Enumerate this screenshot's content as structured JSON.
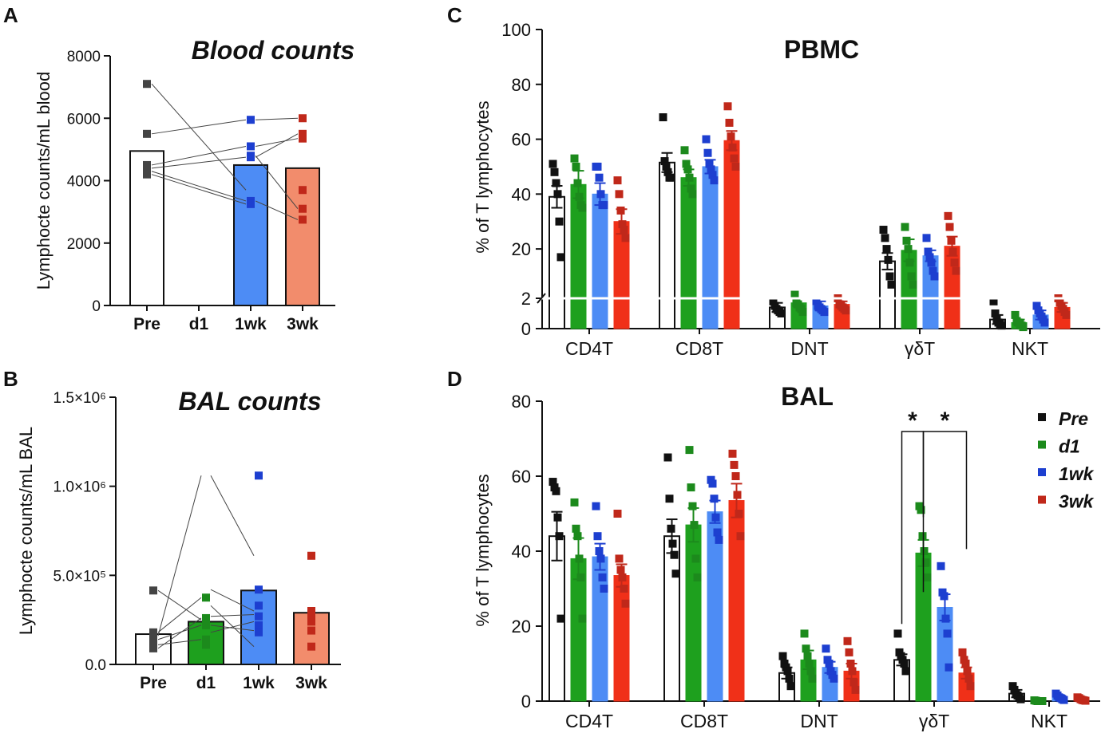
{
  "colors": {
    "Pre": "#ffffff",
    "d1": "#1ea01e",
    "1wk": "#4d8cf5",
    "3wk": "#f28c6c",
    "3wk_pct": "#f03018",
    "dot_Pre": "#111111",
    "dot_d1": "#1c8a1c",
    "dot_1wk": "#1d3fd0",
    "dot_3wk": "#c0281a"
  },
  "legend": {
    "items": [
      "Pre",
      "d1",
      "1wk",
      "3wk"
    ]
  },
  "chart_data": [
    {
      "id": "A",
      "panel_letter": "A",
      "type": "bar",
      "title": "Blood counts",
      "ylabel": "Lymphocte counts/mL blood",
      "ylim": [
        0,
        8000
      ],
      "yticks": [
        "0",
        "2000",
        "4000",
        "6000",
        "8000"
      ],
      "categories": [
        "Pre",
        "d1",
        "1wk",
        "3wk"
      ],
      "values": [
        4950,
        null,
        4500,
        4400
      ],
      "points": {
        "Pre": [
          7100,
          5500,
          4500,
          4400,
          4300,
          4200
        ],
        "1wk": [
          5950,
          5100,
          4800,
          4750,
          3350,
          3250
        ],
        "3wk": [
          6000,
          5500,
          5350,
          3700,
          3100,
          2750
        ]
      },
      "pairs": [
        [
          7100,
          3700
        ],
        [
          5500,
          5950
        ],
        [
          4500,
          5100
        ],
        [
          4400,
          4750
        ],
        [
          4300,
          3350
        ],
        [
          4200,
          3250
        ],
        [
          4750,
          5500
        ],
        [
          5100,
          5350
        ],
        [
          5950,
          6000
        ],
        [
          4800,
          3100
        ],
        [
          3350,
          2750
        ]
      ]
    },
    {
      "id": "B",
      "panel_letter": "B",
      "type": "bar",
      "title": "BAL counts",
      "ylabel": "Lymphocte counts/mL BAL",
      "ylim": [
        0,
        1500000
      ],
      "yticks": [
        "0.0",
        "5.0×10⁵",
        "1.0×10⁶",
        "1.5×10⁶"
      ],
      "categories": [
        "Pre",
        "d1",
        "1wk",
        "3wk"
      ],
      "values": [
        170000,
        240000,
        415000,
        290000
      ],
      "points": {
        "Pre": [
          415000,
          180000,
          160000,
          140000,
          110000,
          90000
        ],
        "d1": [
          375000,
          260000,
          250000,
          220000,
          140000,
          110000
        ],
        "1wk": [
          1060000,
          420000,
          330000,
          270000,
          220000,
          180000
        ],
        "3wk": [
          610000,
          300000,
          280000,
          240000,
          190000,
          100000
        ]
      },
      "pairs": [
        [
          415000,
          250000
        ],
        [
          180000,
          375000
        ],
        [
          160000,
          1060000
        ],
        [
          140000,
          220000
        ],
        [
          110000,
          140000
        ],
        [
          90000,
          260000
        ],
        [
          1060000,
          610000
        ],
        [
          420000,
          300000
        ],
        [
          330000,
          100000
        ],
        [
          270000,
          280000
        ],
        [
          220000,
          190000
        ],
        [
          180000,
          240000
        ]
      ]
    },
    {
      "id": "C",
      "panel_letter": "C",
      "type": "bar",
      "title": "PBMC",
      "ylabel": "% of T lymphocytes",
      "ylim": [
        0,
        100
      ],
      "axis_break": 2,
      "yticks": [
        "0",
        "2",
        "20",
        "40",
        "60",
        "80",
        "100"
      ],
      "categories": [
        "CD4T",
        "CD8T",
        "DNT",
        "γδT",
        "NKT"
      ],
      "series": [
        {
          "name": "Pre",
          "values": [
            39,
            51.5,
            1.4,
            15.5,
            0.6
          ],
          "sem": [
            4,
            3.5,
            0.3,
            3,
            0.3
          ],
          "points": [
            [
              51,
              48,
              44,
              40,
              30,
              17
            ],
            [
              68,
              52,
              50,
              48,
              46,
              46
            ],
            [
              1.8,
              1.5,
              1.3,
              1.2,
              1.1,
              1.0
            ],
            [
              27,
              24,
              20,
              16,
              10,
              7
            ],
            [
              1.8,
              1.0,
              0.6,
              0.4,
              0.3,
              0.2
            ]
          ]
        },
        {
          "name": "d1",
          "values": [
            43.5,
            46,
            1.7,
            19.5,
            0.4
          ],
          "sem": [
            5,
            3,
            0.3,
            4,
            0.2
          ],
          "points": [
            [
              53,
              50,
              44,
              39,
              36,
              35
            ],
            [
              56,
              51,
              49,
              46,
              42,
              40
            ],
            [
              3.3,
              1.7,
              1.6,
              1.4,
              1.3,
              1.1
            ],
            [
              28,
              23,
              20,
              15,
              10,
              7
            ],
            [
              0.9,
              0.5,
              0.4,
              0.3,
              0.2,
              0.1
            ]
          ]
        },
        {
          "name": "1wk",
          "values": [
            40,
            50,
            1.5,
            17.5,
            0.9
          ],
          "sem": [
            4,
            2.5,
            0.3,
            2,
            0.3
          ],
          "points": [
            [
              50,
              50,
              46,
              40,
              36,
              36
            ],
            [
              60,
              55,
              51,
              49,
              47,
              45
            ],
            [
              1.8,
              1.5,
              1.4,
              1.3,
              1.2,
              1.1
            ],
            [
              24,
              19,
              17,
              15,
              12,
              10
            ],
            [
              1.5,
              1.2,
              1.0,
              0.8,
              0.6,
              0.4
            ]
          ]
        },
        {
          "name": "3wk",
          "values": [
            30,
            59.5,
            1.6,
            21,
            1.4
          ],
          "sem": [
            4.5,
            3.5,
            0.2,
            3.5,
            0.3
          ],
          "points": [
            [
              45,
              40,
              34,
              29,
              27,
              24
            ],
            [
              72,
              66,
              61,
              57,
              53,
              50
            ],
            [
              2.0,
              1.6,
              1.5,
              1.4,
              1.3,
              1.2
            ],
            [
              32,
              28,
              23,
              19,
              15,
              12
            ],
            [
              2.0,
              1.7,
              1.5,
              1.3,
              1.1,
              0.9
            ]
          ]
        }
      ]
    },
    {
      "id": "D",
      "panel_letter": "D",
      "type": "bar",
      "title": "BAL",
      "ylabel": "% of T lymphocytes",
      "ylim": [
        0,
        80
      ],
      "yticks": [
        "0",
        "20",
        "40",
        "60",
        "80"
      ],
      "categories": [
        "CD4T",
        "CD8T",
        "DNT",
        "γδT",
        "NKT"
      ],
      "significance": [
        {
          "from": "γδT:Pre",
          "to": "γδT:d1",
          "label": "*"
        },
        {
          "from": "γδT:d1",
          "to": "γδT:3wk",
          "label": "*"
        }
      ],
      "series": [
        {
          "name": "Pre",
          "values": [
            44,
            44,
            7.5,
            11,
            2
          ],
          "sem": [
            6.5,
            4.5,
            1.5,
            1.5,
            1
          ],
          "points": [
            [
              58.5,
              57,
              56,
              49,
              44,
              22
            ],
            [
              65,
              54,
              46,
              42,
              39,
              34
            ],
            [
              12,
              10,
              9,
              8,
              6,
              4
            ],
            [
              18,
              13,
              12,
              11,
              10,
              8
            ],
            [
              4,
              3,
              2,
              1.5,
              1,
              0.5
            ]
          ]
        },
        {
          "name": "d1",
          "values": [
            38,
            47,
            11,
            39.5,
            0
          ],
          "sem": [
            5.5,
            4.5,
            2.5,
            3.5,
            0
          ],
          "points": [
            [
              53,
              46,
              44,
              38,
              33,
              22
            ],
            [
              67,
              57,
              52,
              47,
              38,
              33
            ],
            [
              18,
              14,
              12,
              10,
              8,
              6
            ],
            [
              52,
              51,
              44,
              40,
              37,
              33
            ],
            [
              0.2,
              0.1,
              0,
              0,
              0,
              0
            ]
          ]
        },
        {
          "name": "1wk",
          "values": [
            38.5,
            50.5,
            9,
            25,
            1
          ],
          "sem": [
            3.5,
            3,
            1.5,
            3.5,
            0.5
          ],
          "points": [
            [
              52,
              44,
              40,
              38,
              33,
              30
            ],
            [
              59,
              58,
              54,
              49,
              45,
              43
            ],
            [
              14,
              11,
              10,
              8,
              7,
              6
            ],
            [
              36,
              29,
              28,
              22,
              18,
              9
            ],
            [
              2,
              1.5,
              1,
              0.8,
              0.5,
              0.3
            ]
          ]
        },
        {
          "name": "3wk",
          "values": [
            33.5,
            53.5,
            8,
            7.5,
            0.5
          ],
          "sem": [
            3,
            4.5,
            2,
            1.5,
            0.3
          ],
          "points": [
            [
              50,
              38,
              35,
              33,
              30,
              26
            ],
            [
              66,
              63,
              60,
              55,
              50,
              44
            ],
            [
              16,
              13,
              10,
              8,
              5,
              3
            ],
            [
              13,
              11,
              10,
              8,
              6,
              4
            ],
            [
              1,
              0.8,
              0.5,
              0.3,
              0.2,
              0.1
            ]
          ]
        }
      ]
    }
  ]
}
